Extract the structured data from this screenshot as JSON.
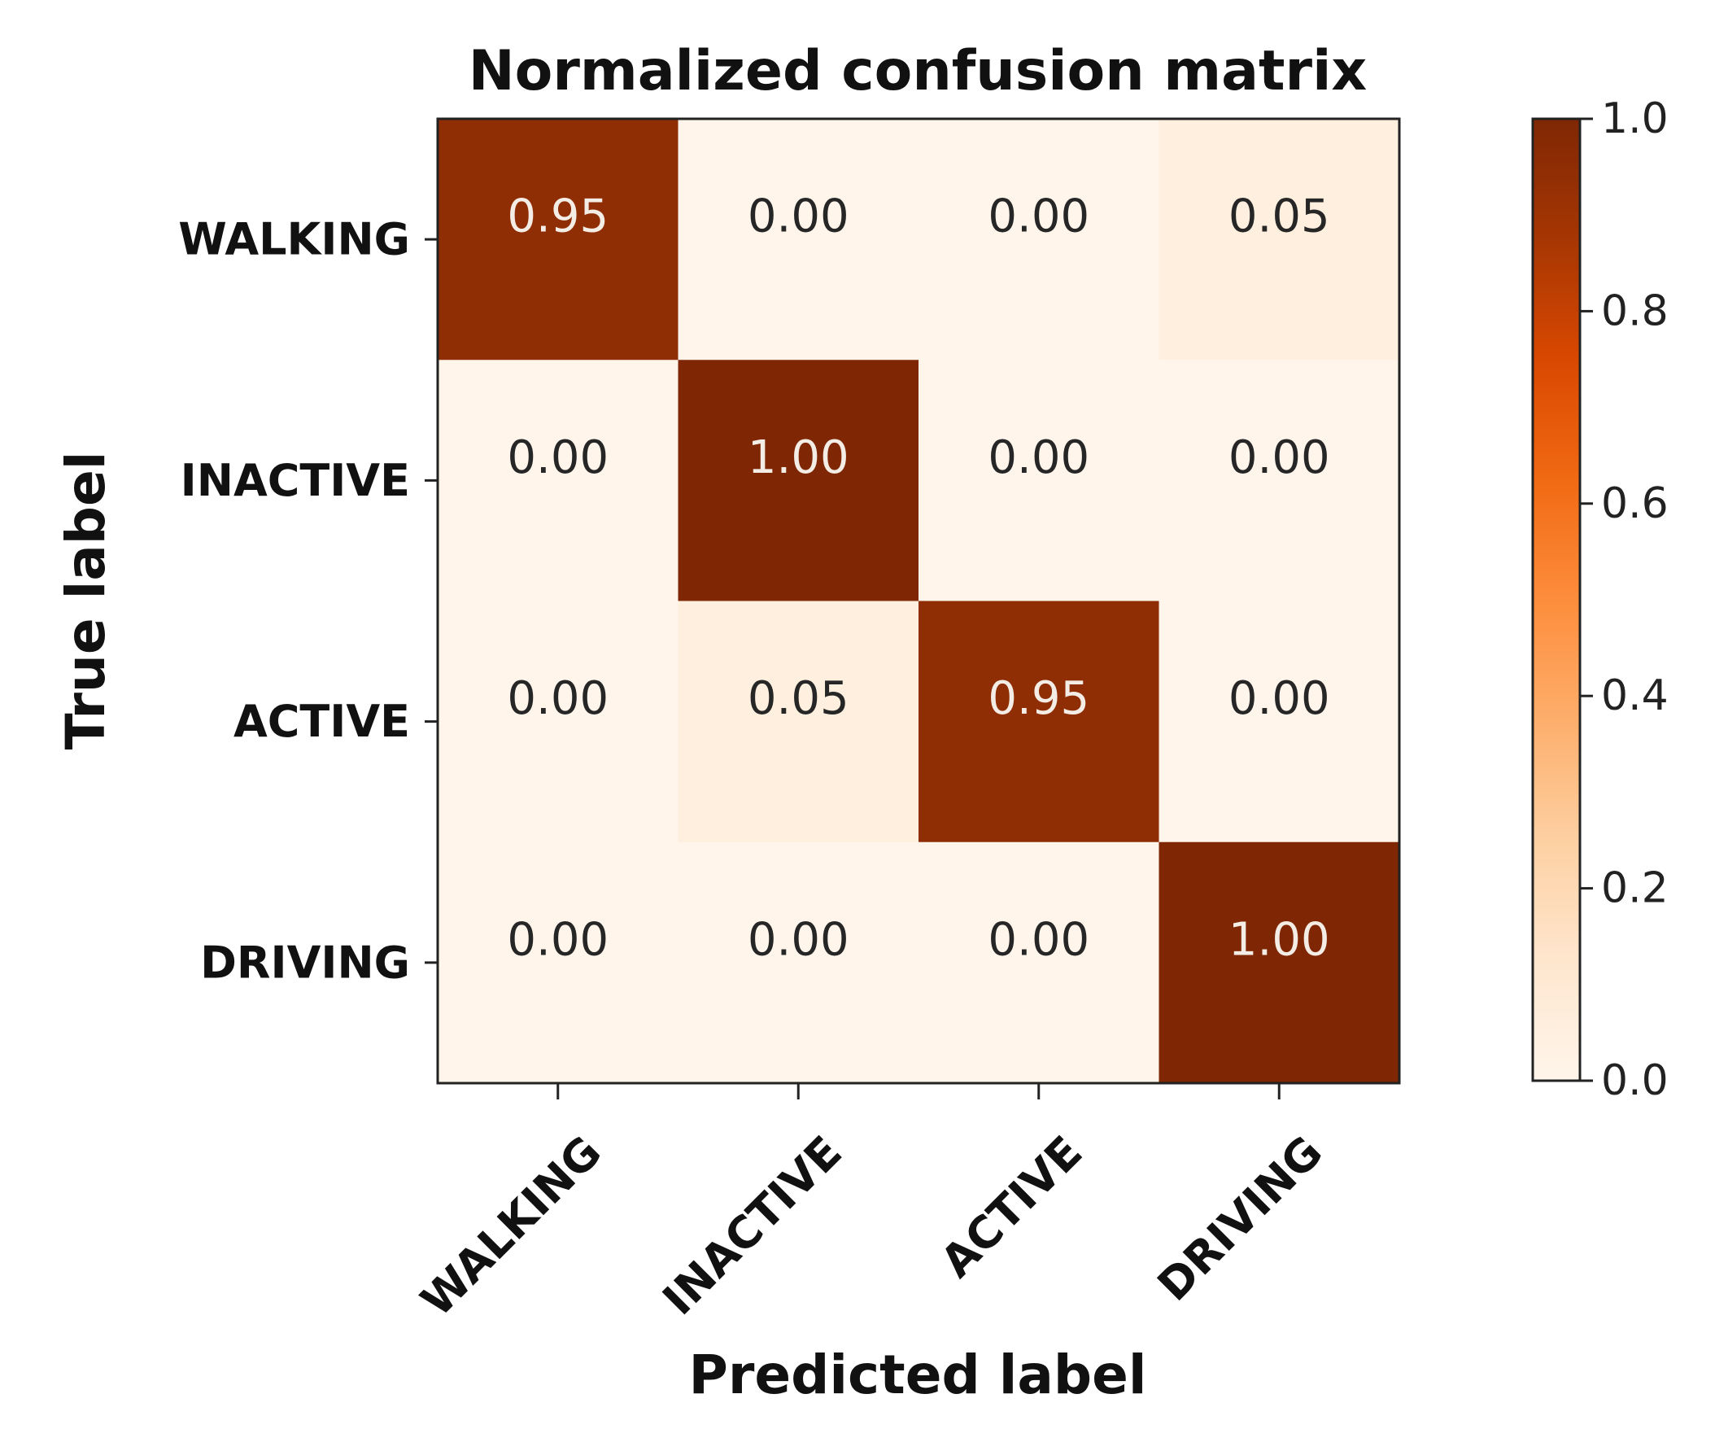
{
  "chart_data": {
    "type": "heatmap",
    "title": "Normalized confusion matrix",
    "xlabel": "Predicted label",
    "ylabel": "True label",
    "x_categories": [
      "WALKING",
      "INACTIVE",
      "ACTIVE",
      "DRIVING"
    ],
    "y_categories": [
      "WALKING",
      "INACTIVE",
      "ACTIVE",
      "DRIVING"
    ],
    "values": [
      [
        0.95,
        0.0,
        0.0,
        0.05
      ],
      [
        0.0,
        1.0,
        0.0,
        0.0
      ],
      [
        0.0,
        0.05,
        0.95,
        0.0
      ],
      [
        0.0,
        0.0,
        0.0,
        1.0
      ]
    ],
    "value_labels": [
      [
        "0.95",
        "0.00",
        "0.00",
        "0.05"
      ],
      [
        "0.00",
        "1.00",
        "0.00",
        "0.00"
      ],
      [
        "0.00",
        "0.05",
        "0.95",
        "0.00"
      ],
      [
        "0.00",
        "0.00",
        "0.00",
        "1.00"
      ]
    ],
    "colormap": "Oranges",
    "colorbar": {
      "range": [
        0.0,
        1.0
      ],
      "ticks": [
        0.0,
        0.2,
        0.4,
        0.6,
        0.8,
        1.0
      ],
      "tick_labels": [
        "0.0",
        "0.2",
        "0.4",
        "0.6",
        "0.8",
        "1.0"
      ]
    }
  }
}
